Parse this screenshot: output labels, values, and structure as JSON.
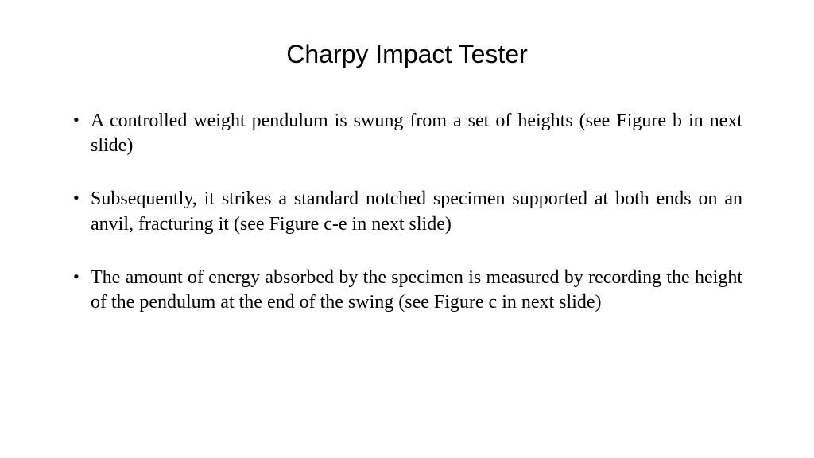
{
  "slide": {
    "title": "Charpy Impact Tester",
    "title_fontsize": 32,
    "title_font": "Arial",
    "body_font": "Times New Roman",
    "body_fontsize": 24,
    "background_color": "#ffffff",
    "text_color": "#000000",
    "bullets": [
      "A controlled weight pendulum is swung from a set of heights (see Figure b in next slide)",
      "Subsequently, it strikes a standard notched specimen supported at both ends on an anvil, fracturing it (see Figure c-e in next slide)",
      "The amount of energy absorbed by the specimen is measured by recording the height of the pendulum at the end of the swing (see Figure c in next slide)"
    ]
  }
}
